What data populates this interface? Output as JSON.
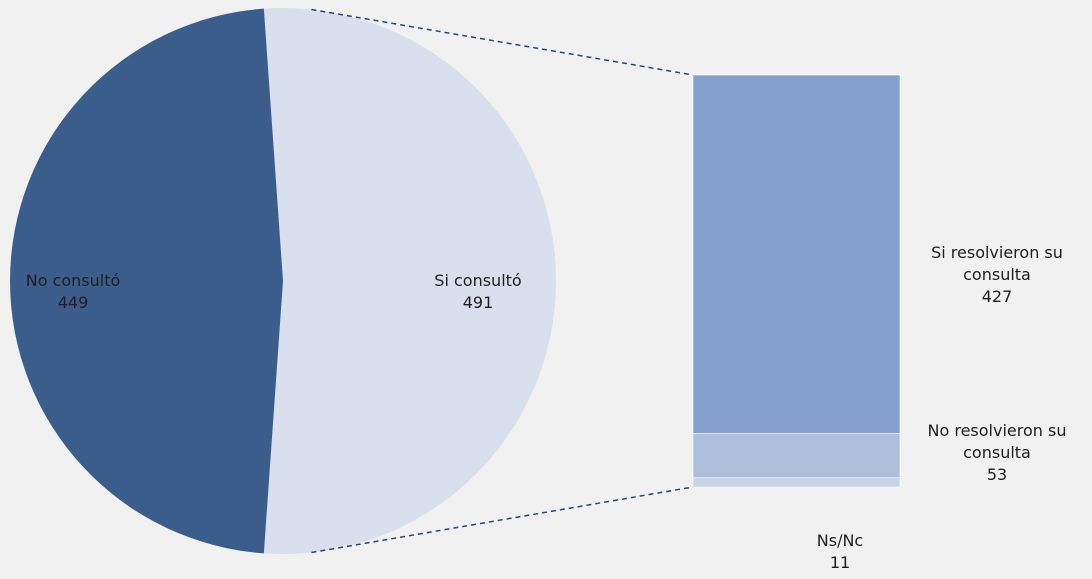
{
  "chart_data": {
    "type": "pie-of-bar",
    "categories": [
      "Si consultó",
      "No consultó"
    ],
    "values": [
      491,
      449
    ],
    "colors": [
      "#d9dfec",
      "#3a5d8c"
    ],
    "breakdown": {
      "categories": [
        "Si resolvieron su consulta",
        "No resolvieron su consulta",
        "Ns/Nc"
      ],
      "values": [
        427,
        53,
        11
      ],
      "colors": [
        "#829fcd",
        "#aebfde",
        "#c9d4ea"
      ]
    }
  }
}
